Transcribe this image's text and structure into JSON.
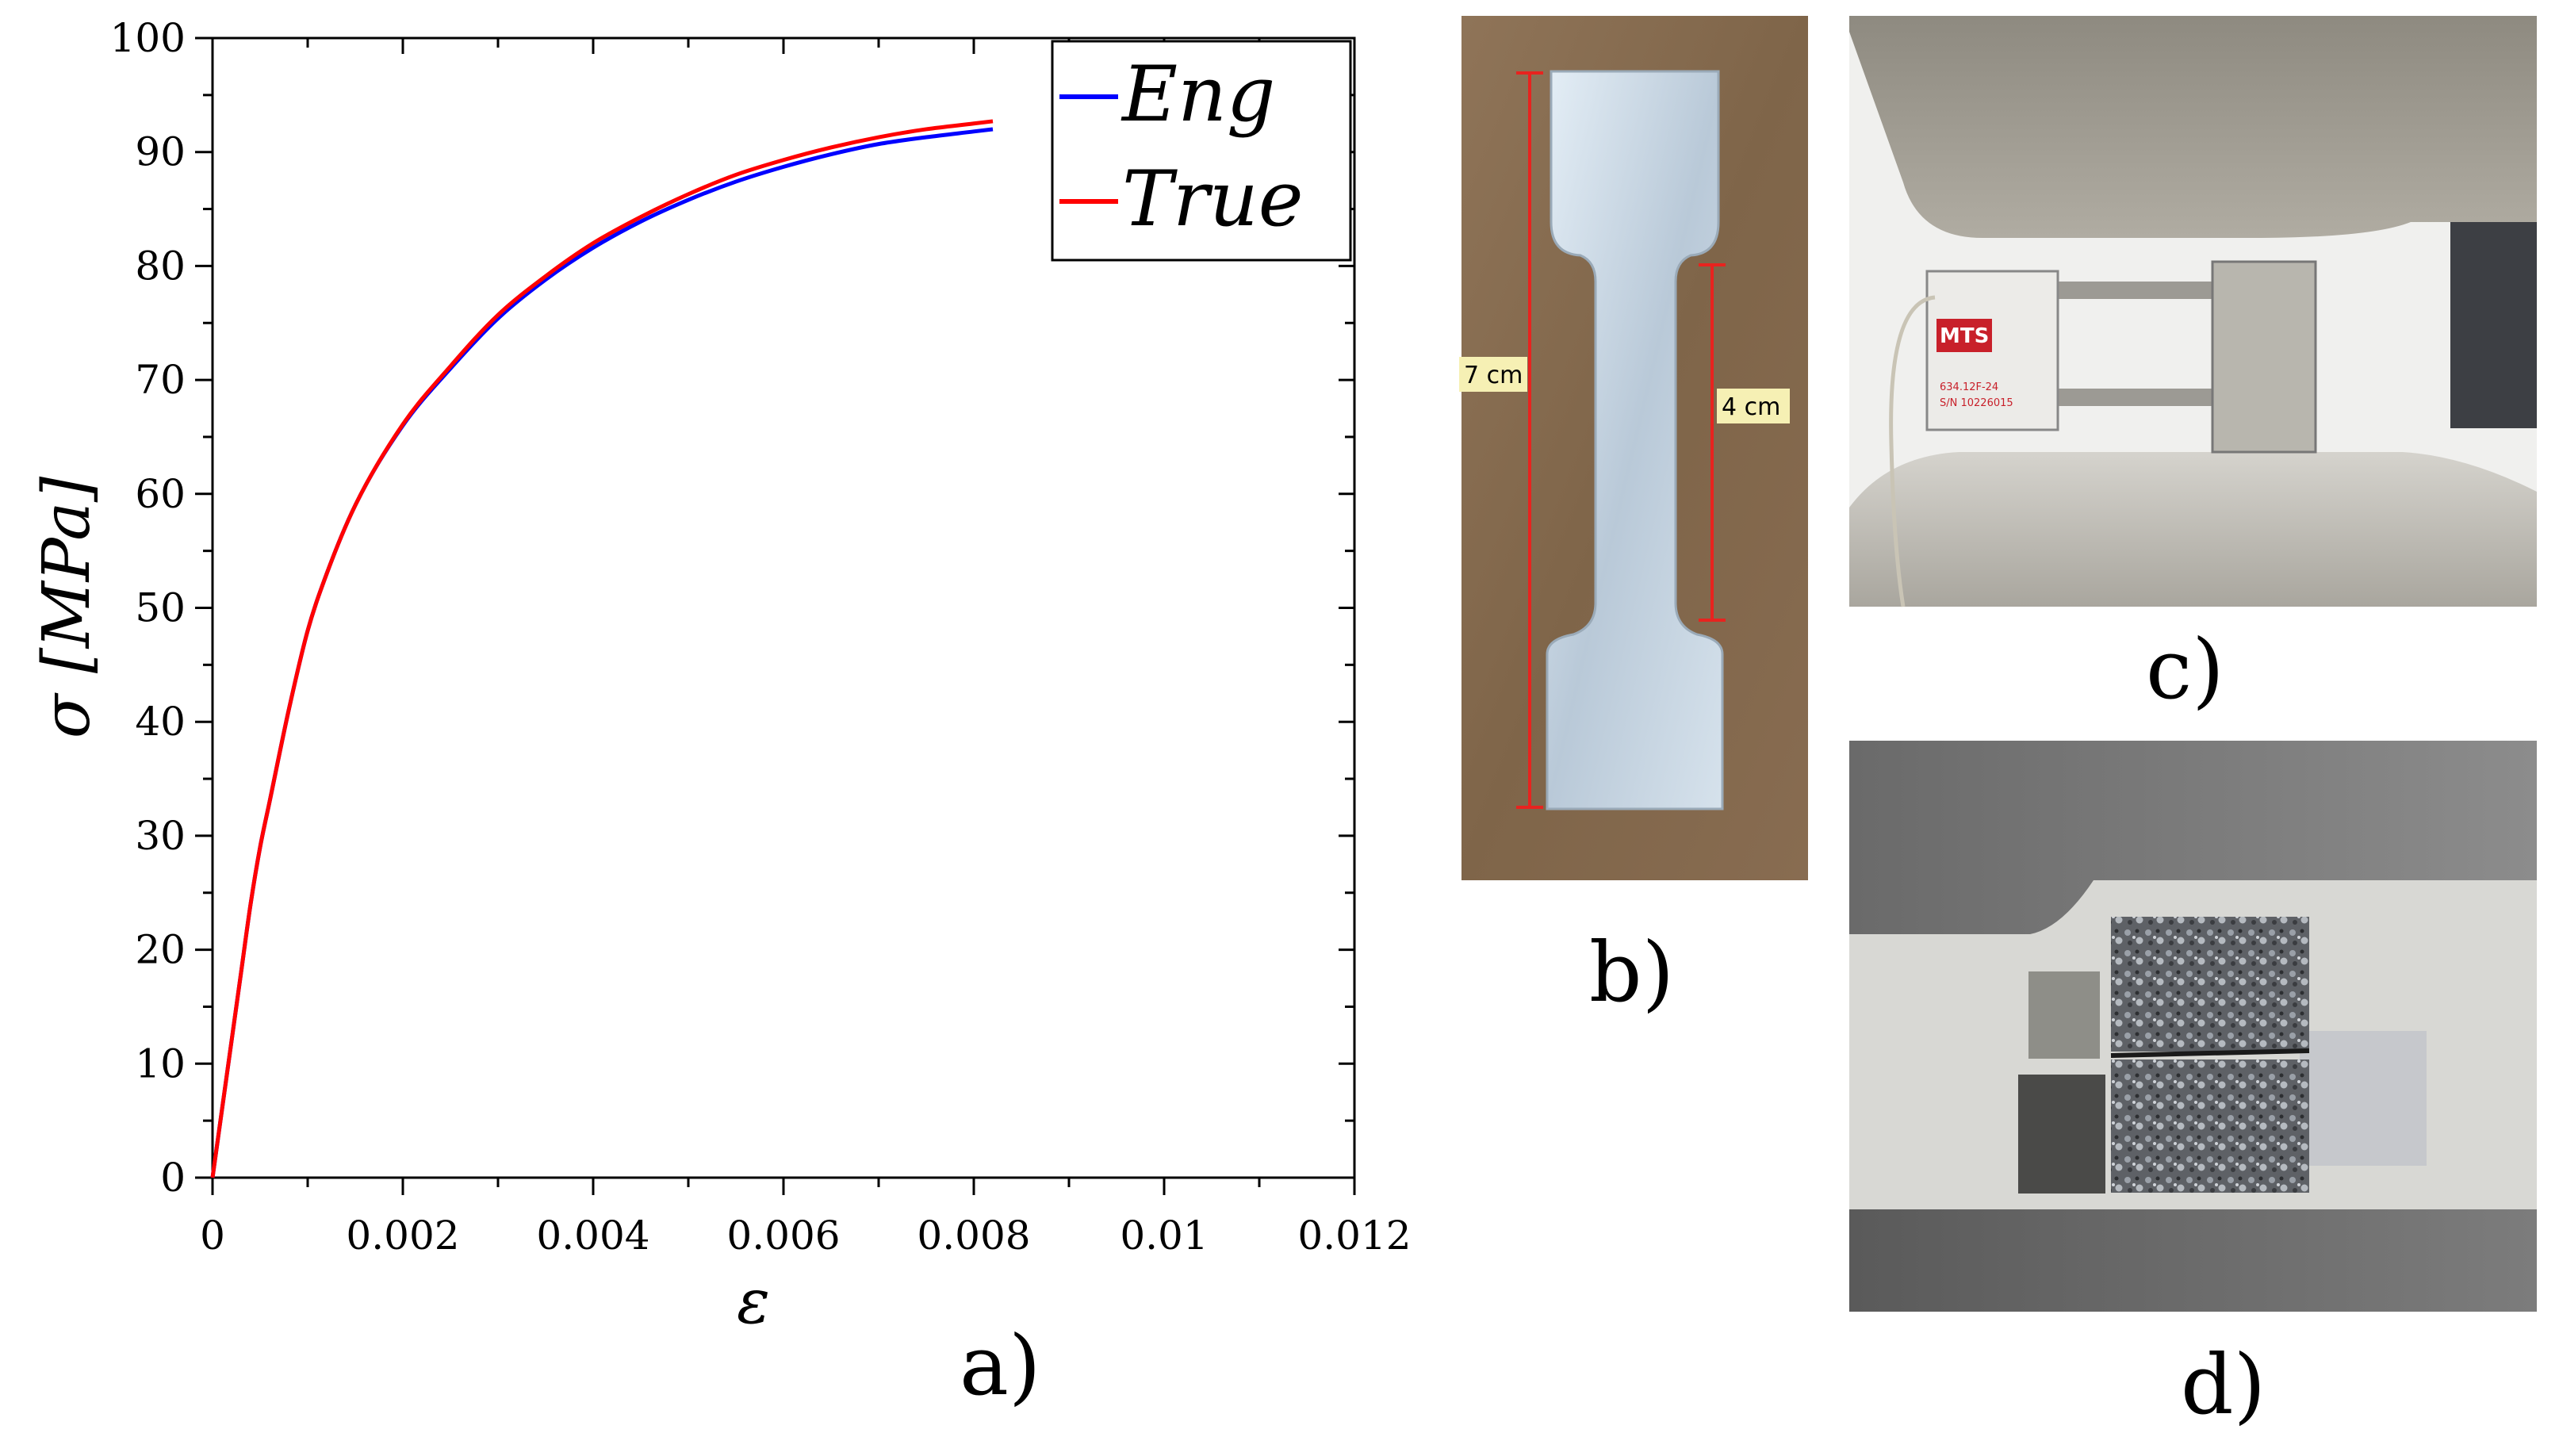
{
  "panel_labels": {
    "a": "a)",
    "b": "b)",
    "c": "c)",
    "d": "d)"
  },
  "photo_b": {
    "length_label": "7 cm",
    "gauge_label": "4 cm"
  },
  "photo_c": {
    "brand_text": "MTS",
    "device_text_1": "634.12F-24",
    "device_text_2": "S/N 10226015"
  },
  "colors": {
    "eng": "#0000ff",
    "true": "#ff0000",
    "dimension_line": "#e8231f",
    "label_box": "#f6f0b4"
  },
  "chart_data": {
    "type": "line",
    "title": "",
    "xlabel": "ε",
    "ylabel": "σ [MPa]",
    "xlim": [
      0,
      0.012
    ],
    "ylim": [
      0,
      100
    ],
    "xticks": [
      0,
      0.002,
      0.004,
      0.006,
      0.008,
      0.01,
      0.012
    ],
    "xtick_labels": [
      "0",
      "0.002",
      "0.004",
      "0.006",
      "0.008",
      "0.01",
      "0.012"
    ],
    "yticks": [
      0,
      10,
      20,
      30,
      40,
      50,
      60,
      70,
      80,
      90,
      100
    ],
    "ytick_labels": [
      "0",
      "10",
      "20",
      "30",
      "40",
      "50",
      "60",
      "70",
      "80",
      "90",
      "100"
    ],
    "grid": false,
    "legend": "top-right",
    "series": [
      {
        "name": "Eng",
        "color": "#0000ff",
        "x": [
          0,
          0.0001,
          0.0002,
          0.0003,
          0.0004,
          0.0005,
          0.0006,
          0.0008,
          0.001,
          0.0012,
          0.0015,
          0.002,
          0.0025,
          0.003,
          0.0035,
          0.004,
          0.0045,
          0.005,
          0.0055,
          0.006,
          0.0065,
          0.007,
          0.0075,
          0.008,
          0.0082
        ],
        "y": [
          0,
          6,
          12,
          18,
          24,
          29,
          33,
          41,
          48,
          53,
          59,
          66,
          71,
          75.4,
          78.8,
          81.6,
          83.9,
          85.8,
          87.4,
          88.7,
          89.8,
          90.7,
          91.3,
          91.8,
          92.0
        ]
      },
      {
        "name": "True",
        "color": "#ff0000",
        "x": [
          0,
          0.0001,
          0.0002,
          0.0003,
          0.0004,
          0.0005,
          0.0006,
          0.0008,
          0.001,
          0.0012,
          0.0015,
          0.002,
          0.0025,
          0.003,
          0.0035,
          0.004,
          0.0045,
          0.005,
          0.0055,
          0.006,
          0.0065,
          0.007,
          0.0075,
          0.008,
          0.0082
        ],
        "y": [
          0,
          6,
          12,
          18,
          24,
          29,
          33,
          41,
          48,
          53,
          59,
          66.1,
          71.2,
          75.7,
          79.1,
          82.0,
          84.3,
          86.3,
          88.0,
          89.3,
          90.4,
          91.3,
          92.0,
          92.5,
          92.7
        ]
      }
    ]
  }
}
